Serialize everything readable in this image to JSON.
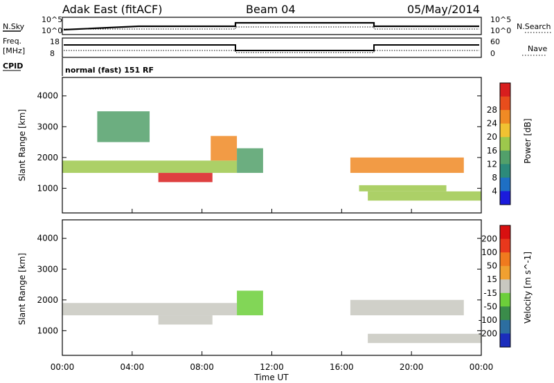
{
  "header": {
    "radar": "Adak East (fitACF)",
    "beam": "Beam 04",
    "date": "05/May/2014"
  },
  "panels": {
    "nsky_label": "N.Sky",
    "nsearch_label": "N.Search",
    "log_top": "10^5",
    "log_bottom": "10^0",
    "freq_label": "Freq.",
    "freq_unit": "[MHz]",
    "cpid_label": "CPID",
    "nave_label": "Nave",
    "freq_ticks": [
      "18",
      "8"
    ],
    "nave_ticks": [
      "60",
      "0"
    ],
    "cpid_text": "normal (fast) 151 RF"
  },
  "chart_data": [
    {
      "type": "heatmap",
      "quantity": "Power",
      "ylabel": "Slant Range [km]",
      "yticks": [
        1000,
        2000,
        3000,
        4000
      ],
      "ylim": [
        200,
        4600
      ],
      "xlim": [
        0,
        24
      ],
      "colorbar": {
        "label": "Power [dB]",
        "ticks": [
          "4",
          "8",
          "12",
          "16",
          "20",
          "24",
          "28"
        ],
        "colors": [
          "#1b1bdc",
          "#1e6fc4",
          "#2c8a7a",
          "#52a06a",
          "#9dc84c",
          "#f1c232",
          "#f08a24",
          "#e84d1c",
          "#d81e1e"
        ]
      },
      "bands": [
        {
          "t0": 0.0,
          "t1": 10.0,
          "r0": 1500,
          "r1": 1900,
          "level": 0.55
        },
        {
          "t0": 5.5,
          "t1": 8.6,
          "r0": 1200,
          "r1": 1500,
          "level": 0.95
        },
        {
          "t0": 2.0,
          "t1": 5.0,
          "r0": 2500,
          "r1": 3500,
          "level": 0.35
        },
        {
          "t0": 8.5,
          "t1": 10.0,
          "r0": 1900,
          "r1": 2700,
          "level": 0.7
        },
        {
          "t0": 10.0,
          "t1": 11.5,
          "r0": 1500,
          "r1": 2300,
          "level": 0.4
        },
        {
          "t0": 16.5,
          "t1": 23.0,
          "r0": 1500,
          "r1": 2000,
          "level": 0.75
        },
        {
          "t0": 17.0,
          "t1": 22.0,
          "r0": 900,
          "r1": 1100,
          "level": 0.5
        },
        {
          "t0": 17.5,
          "t1": 24.0,
          "r0": 600,
          "r1": 900,
          "level": 0.45
        }
      ]
    },
    {
      "type": "heatmap",
      "quantity": "Velocity",
      "ylabel": "Slant Range [km]",
      "yticks": [
        1000,
        2000,
        3000,
        4000
      ],
      "ylim": [
        200,
        4600
      ],
      "xlim": [
        0,
        24
      ],
      "xticks": [
        "00:00",
        "04:00",
        "08:00",
        "12:00",
        "16:00",
        "20:00",
        "00:00"
      ],
      "xlabel": "Time UT",
      "colorbar": {
        "label": "Velocity [m s^-1]",
        "ticks": [
          "200",
          "100",
          "50",
          "15",
          "-15",
          "-50",
          "-100",
          "-200"
        ],
        "colors": [
          "#1b2dbc",
          "#2c6ea0",
          "#3a8c4a",
          "#6ccf3a",
          "#c8c8c0",
          "#f0a030",
          "#f07a1e",
          "#e8381c",
          "#d81010"
        ]
      },
      "bands": [
        {
          "t0": 0.0,
          "t1": 10.0,
          "r0": 1500,
          "r1": 1900,
          "level": 0.5
        },
        {
          "t0": 5.5,
          "t1": 8.6,
          "r0": 1200,
          "r1": 1500,
          "level": 0.55
        },
        {
          "t0": 10.0,
          "t1": 11.5,
          "r0": 1500,
          "r1": 2300,
          "level": 0.4
        },
        {
          "t0": 16.5,
          "t1": 23.0,
          "r0": 1500,
          "r1": 2000,
          "level": 0.45
        },
        {
          "t0": 17.5,
          "t1": 24.0,
          "r0": 600,
          "r1": 900,
          "level": 0.5
        }
      ]
    }
  ]
}
